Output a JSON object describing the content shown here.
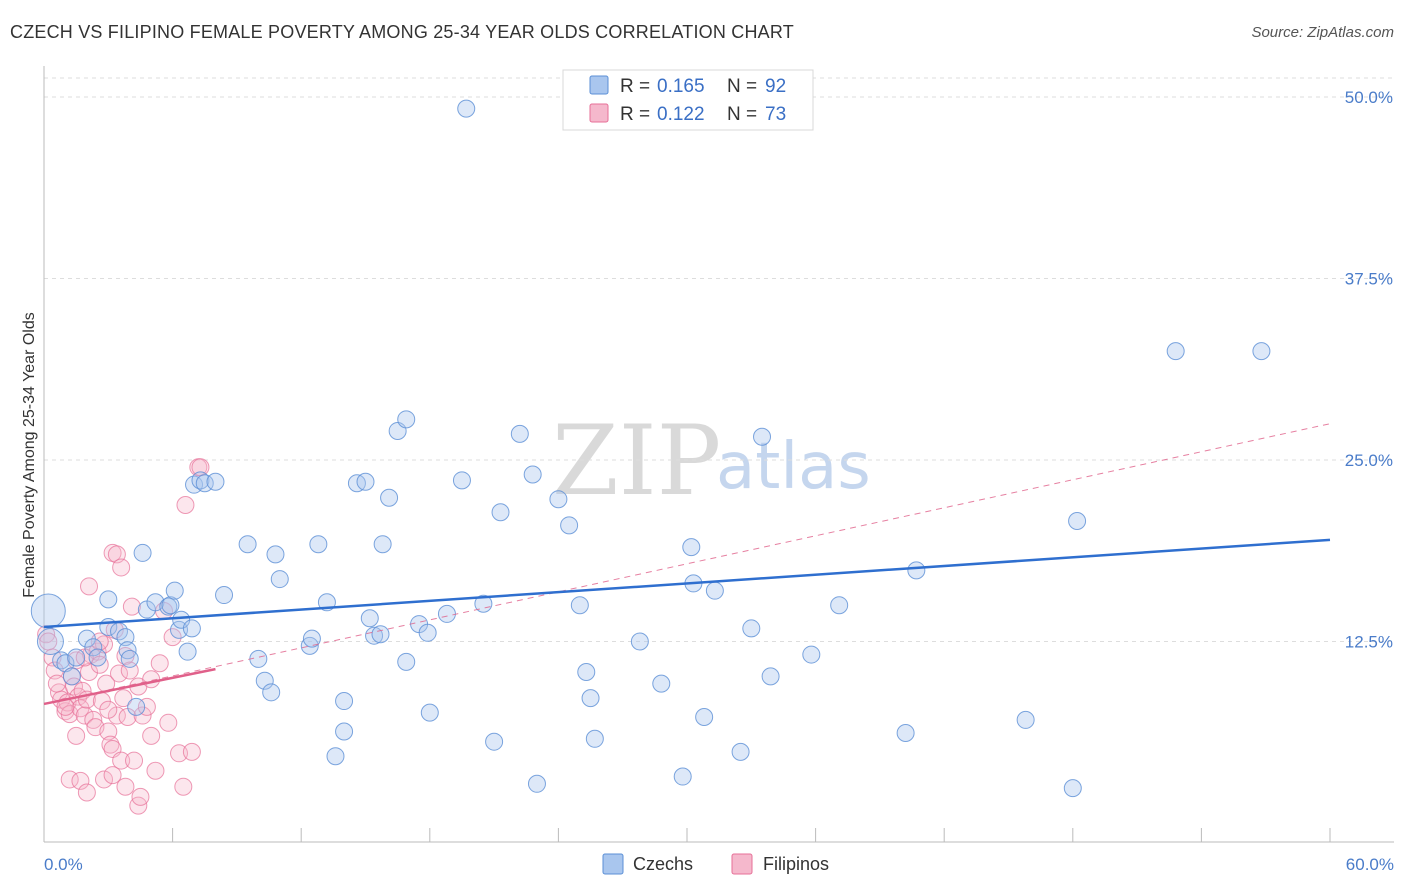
{
  "header": {
    "title": "CZECH VS FILIPINO FEMALE POVERTY AMONG 25-34 YEAR OLDS CORRELATION CHART",
    "source": "Source: ZipAtlas.com"
  },
  "watermark": {
    "zip": "ZIP",
    "atlas": "atlas"
  },
  "colors": {
    "czech": "#5b8fd6",
    "czech_fill": "#a9c6ee",
    "filipino": "#e76f97",
    "filipino_fill": "#f5b8cc",
    "czech_line": "#2f6fcf",
    "filipino_line": "#e0608a",
    "tick_text": "#4a7cc9"
  },
  "legend": {
    "czech": {
      "r_label": "R = ",
      "r_value": "0.165",
      "n_label": "N = ",
      "n_value": "92"
    },
    "filipino": {
      "r_label": "R = ",
      "r_value": "0.122",
      "n_label": "N = ",
      "n_value": "73"
    }
  },
  "bottom_legend": {
    "czech": "Czechs",
    "filipino": "Filipinos"
  },
  "chart_data": {
    "type": "scatter",
    "title": "CZECH VS FILIPINO FEMALE POVERTY AMONG 25-34 YEAR OLDS CORRELATION CHART",
    "xlabel": "",
    "ylabel": "Female Poverty Among 25-34 Year Olds",
    "xlim": [
      0,
      60
    ],
    "ylim": [
      0,
      50
    ],
    "x_tick_labels": [
      "0.0%",
      "60.0%"
    ],
    "y_ticks": [
      12.5,
      25.0,
      37.5,
      50.0
    ],
    "y_tick_labels": [
      "12.5%",
      "25.0%",
      "37.5%",
      "50.0%"
    ],
    "grid": true,
    "series": [
      {
        "name": "Czechs",
        "r": 0.165,
        "n": 92,
        "trend": {
          "x0": 0,
          "y0": 13.5,
          "x1": 60,
          "y1": 19.5
        },
        "points": [
          [
            0.2,
            14.6
          ],
          [
            0.3,
            12.5
          ],
          [
            0.8,
            11.2
          ],
          [
            1.0,
            11.0
          ],
          [
            1.3,
            10.1
          ],
          [
            1.5,
            11.4
          ],
          [
            2.0,
            12.7
          ],
          [
            2.3,
            12.1
          ],
          [
            2.5,
            11.4
          ],
          [
            3.0,
            13.5
          ],
          [
            3.0,
            15.4
          ],
          [
            3.5,
            13.2
          ],
          [
            3.8,
            12.8
          ],
          [
            3.9,
            11.9
          ],
          [
            4.0,
            11.3
          ],
          [
            4.3,
            8.0
          ],
          [
            4.6,
            18.6
          ],
          [
            4.8,
            14.7
          ],
          [
            5.2,
            15.2
          ],
          [
            5.8,
            14.9
          ],
          [
            5.9,
            15.0
          ],
          [
            6.1,
            16.0
          ],
          [
            6.3,
            13.3
          ],
          [
            6.4,
            14.0
          ],
          [
            6.7,
            11.8
          ],
          [
            6.9,
            13.4
          ],
          [
            7.0,
            23.3
          ],
          [
            7.3,
            23.6
          ],
          [
            7.5,
            23.4
          ],
          [
            8.0,
            23.5
          ],
          [
            9.5,
            19.2
          ],
          [
            8.4,
            15.7
          ],
          [
            10.3,
            9.8
          ],
          [
            10.6,
            9.0
          ],
          [
            10.8,
            18.5
          ],
          [
            11.0,
            16.8
          ],
          [
            10.0,
            11.3
          ],
          [
            12.4,
            12.2
          ],
          [
            12.5,
            12.7
          ],
          [
            12.8,
            19.2
          ],
          [
            13.2,
            15.2
          ],
          [
            13.6,
            4.6
          ],
          [
            14.0,
            8.4
          ],
          [
            14.0,
            6.3
          ],
          [
            14.6,
            23.4
          ],
          [
            15.0,
            23.5
          ],
          [
            15.2,
            14.1
          ],
          [
            15.4,
            12.9
          ],
          [
            15.7,
            13.0
          ],
          [
            15.8,
            19.2
          ],
          [
            16.1,
            22.4
          ],
          [
            16.5,
            27.0
          ],
          [
            16.9,
            27.8
          ],
          [
            16.9,
            11.1
          ],
          [
            17.5,
            13.7
          ],
          [
            17.9,
            13.1
          ],
          [
            18.0,
            7.6
          ],
          [
            18.8,
            14.4
          ],
          [
            19.5,
            23.6
          ],
          [
            19.7,
            49.2
          ],
          [
            20.5,
            15.1
          ],
          [
            21.0,
            5.6
          ],
          [
            21.3,
            21.4
          ],
          [
            22.2,
            26.8
          ],
          [
            22.8,
            24.0
          ],
          [
            23.0,
            2.7
          ],
          [
            24.0,
            22.3
          ],
          [
            24.5,
            20.5
          ],
          [
            25.0,
            15.0
          ],
          [
            25.3,
            10.4
          ],
          [
            25.5,
            8.6
          ],
          [
            25.7,
            5.8
          ],
          [
            27.8,
            12.5
          ],
          [
            28.8,
            9.6
          ],
          [
            29.8,
            3.2
          ],
          [
            30.2,
            19.0
          ],
          [
            30.3,
            16.5
          ],
          [
            30.8,
            7.3
          ],
          [
            31.3,
            16.0
          ],
          [
            32.5,
            4.9
          ],
          [
            33.0,
            13.4
          ],
          [
            33.5,
            26.6
          ],
          [
            33.9,
            10.1
          ],
          [
            35.8,
            11.6
          ],
          [
            37.1,
            15.0
          ],
          [
            40.2,
            6.2
          ],
          [
            40.7,
            17.4
          ],
          [
            45.8,
            7.1
          ],
          [
            48.2,
            20.8
          ],
          [
            52.8,
            32.5
          ],
          [
            56.8,
            32.5
          ],
          [
            48.0,
            2.4
          ]
        ]
      },
      {
        "name": "Filipinos",
        "r": 0.122,
        "n": 73,
        "trend": {
          "x0": 0,
          "y0": 8.2,
          "x1": 8,
          "y1": 10.6,
          "dashed_x1": 60,
          "dashed_y1": 27.5
        },
        "points": [
          [
            0.1,
            13.0
          ],
          [
            0.2,
            12.5
          ],
          [
            0.4,
            11.4
          ],
          [
            0.5,
            10.5
          ],
          [
            0.7,
            9.0
          ],
          [
            0.8,
            8.5
          ],
          [
            1.0,
            7.7
          ],
          [
            1.1,
            8.3
          ],
          [
            1.2,
            7.5
          ],
          [
            1.3,
            10.1
          ],
          [
            1.4,
            9.4
          ],
          [
            1.5,
            11.2
          ],
          [
            1.6,
            8.7
          ],
          [
            1.7,
            7.9
          ],
          [
            1.8,
            9.1
          ],
          [
            1.9,
            7.4
          ],
          [
            2.0,
            8.5
          ],
          [
            2.1,
            10.4
          ],
          [
            2.2,
            11.6
          ],
          [
            2.3,
            7.1
          ],
          [
            2.4,
            6.6
          ],
          [
            2.5,
            11.8
          ],
          [
            2.6,
            10.9
          ],
          [
            2.7,
            8.4
          ],
          [
            2.8,
            12.3
          ],
          [
            2.9,
            9.6
          ],
          [
            3.0,
            6.3
          ],
          [
            3.1,
            5.4
          ],
          [
            3.2,
            5.1
          ],
          [
            3.3,
            13.3
          ],
          [
            3.4,
            7.4
          ],
          [
            3.5,
            10.3
          ],
          [
            3.6,
            4.3
          ],
          [
            3.7,
            8.6
          ],
          [
            3.8,
            11.5
          ],
          [
            3.9,
            7.3
          ],
          [
            4.0,
            10.5
          ],
          [
            4.2,
            4.3
          ],
          [
            4.4,
            9.4
          ],
          [
            4.6,
            7.4
          ],
          [
            4.8,
            8.0
          ],
          [
            5.0,
            6.0
          ],
          [
            5.2,
            3.6
          ],
          [
            5.4,
            11.0
          ],
          [
            5.6,
            14.6
          ],
          [
            5.8,
            6.9
          ],
          [
            6.0,
            12.8
          ],
          [
            6.3,
            4.8
          ],
          [
            3.2,
            18.6
          ],
          [
            3.4,
            18.5
          ],
          [
            3.6,
            17.6
          ],
          [
            7.2,
            24.5
          ],
          [
            7.3,
            24.5
          ],
          [
            6.6,
            21.9
          ],
          [
            2.1,
            16.3
          ],
          [
            1.2,
            3.0
          ],
          [
            1.7,
            2.9
          ],
          [
            2.0,
            2.1
          ],
          [
            2.8,
            3.0
          ],
          [
            3.2,
            3.3
          ],
          [
            3.8,
            2.5
          ],
          [
            4.4,
            1.2
          ],
          [
            4.5,
            1.8
          ],
          [
            6.5,
            2.5
          ],
          [
            6.9,
            4.9
          ],
          [
            1.5,
            6.0
          ],
          [
            1.0,
            8.0
          ],
          [
            0.6,
            9.6
          ],
          [
            1.9,
            11.4
          ],
          [
            4.1,
            14.9
          ],
          [
            2.6,
            12.5
          ],
          [
            3.0,
            7.8
          ],
          [
            5.0,
            9.9
          ]
        ]
      }
    ]
  }
}
